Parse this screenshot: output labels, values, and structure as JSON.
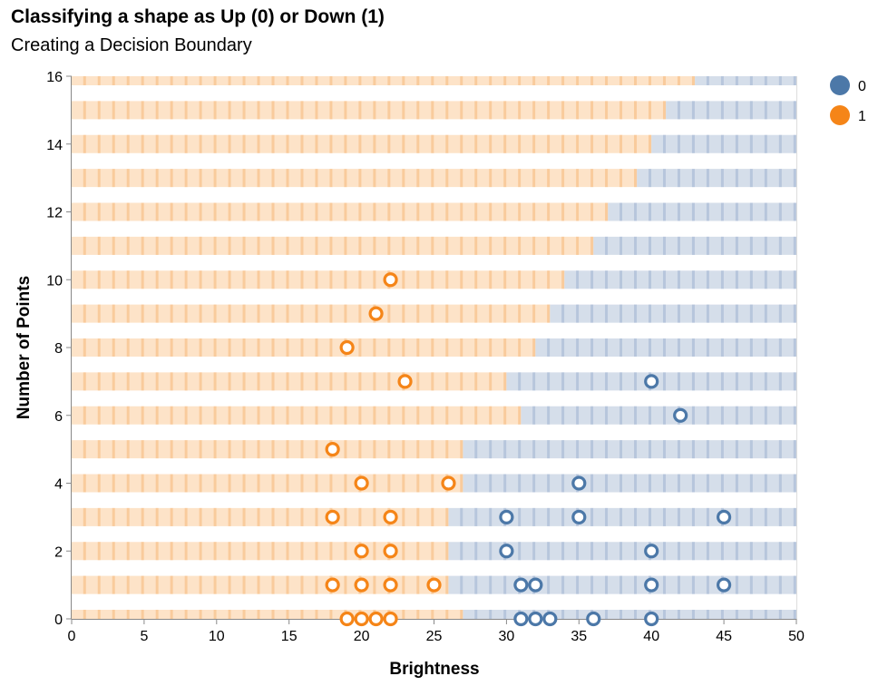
{
  "chart_data": {
    "type": "scatter",
    "title": "Classifying a shape as Up (0) or Down (1)",
    "subtitle": "Creating a Decision Boundary",
    "xlabel": "Brightness",
    "ylabel": "Number of Points",
    "xlim": [
      0,
      50
    ],
    "ylim": [
      0,
      16
    ],
    "x_ticks": [
      0,
      5,
      10,
      15,
      20,
      25,
      30,
      35,
      40,
      45,
      50
    ],
    "y_ticks": [
      0,
      2,
      4,
      6,
      8,
      10,
      12,
      14,
      16
    ],
    "legend_position": "top-right",
    "colors": {
      "0": "#4c78a8",
      "1": "#f58518"
    },
    "series": [
      {
        "name": "0",
        "points": [
          [
            31,
            0
          ],
          [
            32,
            0
          ],
          [
            33,
            0
          ],
          [
            36,
            0
          ],
          [
            40,
            0
          ],
          [
            31,
            1
          ],
          [
            32,
            1
          ],
          [
            40,
            1
          ],
          [
            45,
            1
          ],
          [
            30,
            2
          ],
          [
            40,
            2
          ],
          [
            30,
            3
          ],
          [
            35,
            3
          ],
          [
            45,
            3
          ],
          [
            35,
            4
          ],
          [
            42,
            6
          ],
          [
            40,
            7
          ]
        ]
      },
      {
        "name": "1",
        "points": [
          [
            19,
            0
          ],
          [
            20,
            0
          ],
          [
            21,
            0
          ],
          [
            22,
            0
          ],
          [
            18,
            1
          ],
          [
            20,
            1
          ],
          [
            22,
            1
          ],
          [
            25,
            1
          ],
          [
            20,
            2
          ],
          [
            22,
            2
          ],
          [
            18,
            3
          ],
          [
            22,
            3
          ],
          [
            20,
            4
          ],
          [
            26,
            4
          ],
          [
            18,
            5
          ],
          [
            23,
            7
          ],
          [
            19,
            8
          ],
          [
            21,
            9
          ],
          [
            22,
            10
          ]
        ]
      }
    ],
    "decision_boundary": {
      "description": "Background bands: class 1 (orange) left of boundary, class 0 (blue) right of boundary",
      "rows": [
        {
          "y": 0,
          "boundary_x": 27.5
        },
        {
          "y": 1,
          "boundary_x": 26.5
        },
        {
          "y": 2,
          "boundary_x": 26.5
        },
        {
          "y": 3,
          "boundary_x": 26.5
        },
        {
          "y": 4,
          "boundary_x": 27.5
        },
        {
          "y": 5,
          "boundary_x": 27.5
        },
        {
          "y": 6,
          "boundary_x": 31.5
        },
        {
          "y": 7,
          "boundary_x": 30.5
        },
        {
          "y": 8,
          "boundary_x": 32.5
        },
        {
          "y": 9,
          "boundary_x": 33.5
        },
        {
          "y": 10,
          "boundary_x": 34.5
        },
        {
          "y": 11,
          "boundary_x": 36.5
        },
        {
          "y": 12,
          "boundary_x": 37.5
        },
        {
          "y": 13,
          "boundary_x": 39.5
        },
        {
          "y": 14,
          "boundary_x": 40.5
        },
        {
          "y": 15,
          "boundary_x": 41.5
        },
        {
          "y": 16,
          "boundary_x": 43.5
        }
      ]
    }
  }
}
